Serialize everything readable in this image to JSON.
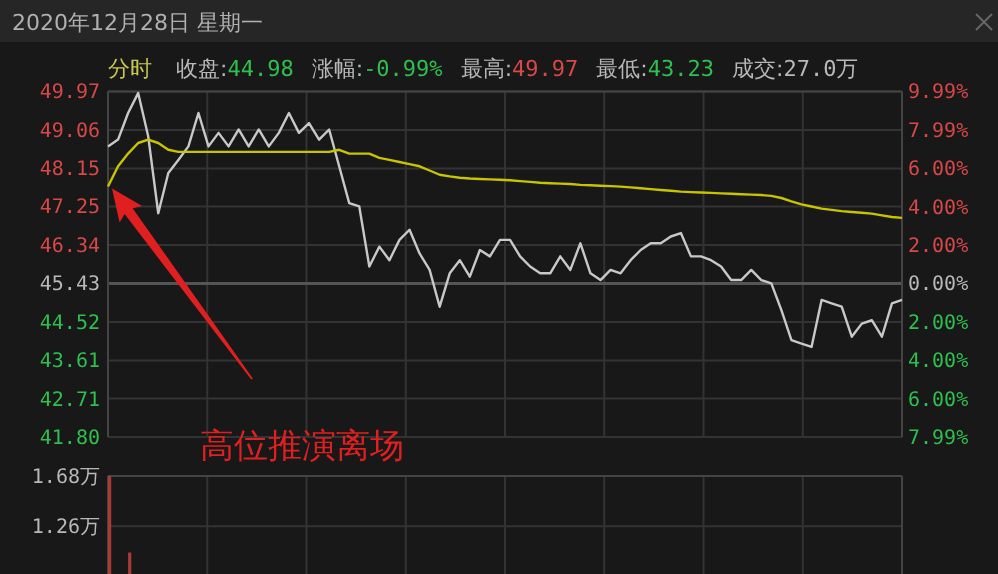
{
  "chart_data": [
    {
      "type": "line",
      "title": "2020年12月28日 星期一",
      "annotations": [
        "分时",
        "收盘:44.98",
        "涨幅:-0.99%",
        "最高:49.97",
        "最低:43.23",
        "成交:27.0万",
        "高位推演离场"
      ],
      "categories": [
        null,
        null,
        null,
        null,
        null,
        null,
        null,
        null,
        null,
        null,
        null,
        null,
        null,
        null,
        null,
        null,
        null,
        null,
        null,
        null,
        null,
        null,
        null,
        null,
        null,
        null,
        null,
        null,
        null,
        null,
        null,
        null,
        null,
        null,
        null,
        null,
        null,
        null,
        null,
        null,
        null,
        null,
        null,
        null,
        null,
        null,
        null,
        null,
        null,
        null,
        null,
        null,
        null,
        null,
        null,
        null,
        null,
        null,
        null,
        null,
        null,
        null,
        null,
        null,
        null,
        null,
        null,
        null,
        null,
        null,
        null,
        null,
        null,
        null,
        null,
        null,
        null,
        null,
        null,
        null
      ],
      "series": [
        {
          "color": "#c8c8c8",
          "values": [
            48.67,
            48.83,
            49.46,
            49.93,
            48.91,
            47.09,
            48.04,
            48.35,
            48.67,
            49.46,
            48.67,
            48.99,
            48.67,
            49.07,
            48.67,
            49.07,
            48.67,
            48.99,
            49.46,
            48.99,
            49.22,
            48.83,
            49.07,
            48.2,
            47.33,
            47.25,
            45.83,
            46.3,
            45.98,
            46.46,
            46.7,
            46.14,
            45.75,
            44.88,
            45.67,
            45.98,
            45.59,
            46.22,
            46.07,
            46.46,
            46.46,
            46.07,
            45.83,
            45.67,
            45.67,
            46.07,
            45.75,
            46.38,
            45.67,
            45.51,
            45.75,
            45.67,
            45.98,
            46.22,
            46.38,
            46.38,
            46.54,
            46.62,
            46.07,
            46.07,
            45.98,
            45.83,
            45.51,
            45.51,
            45.75,
            45.51,
            45.43,
            44.8,
            44.09,
            44.01,
            43.93,
            45.04,
            44.96,
            44.88,
            44.17,
            44.48,
            44.56,
            44.17,
            44.96,
            45.04
          ]
        },
        {
          "color": "#c8c400",
          "values": [
            47.72,
            48.2,
            48.5,
            48.75,
            48.83,
            48.75,
            48.59,
            48.54,
            48.54,
            48.54,
            48.54,
            48.54,
            48.54,
            48.54,
            48.54,
            48.54,
            48.54,
            48.54,
            48.54,
            48.54,
            48.54,
            48.54,
            48.54,
            48.59,
            48.5,
            48.5,
            48.5,
            48.4,
            48.35,
            48.3,
            48.25,
            48.2,
            48.1,
            48.0,
            47.96,
            47.93,
            47.91,
            47.9,
            47.89,
            47.88,
            47.87,
            47.85,
            47.83,
            47.81,
            47.8,
            47.79,
            47.78,
            47.76,
            47.75,
            47.74,
            47.73,
            47.72,
            47.7,
            47.68,
            47.66,
            47.64,
            47.62,
            47.6,
            47.59,
            47.58,
            47.57,
            47.56,
            47.55,
            47.54,
            47.53,
            47.52,
            47.5,
            47.45,
            47.37,
            47.3,
            47.25,
            47.2,
            47.17,
            47.14,
            47.12,
            47.1,
            47.08,
            47.04,
            47.0,
            46.98
          ]
        }
      ],
      "ylim": [
        41.8,
        49.97
      ],
      "yticks": [
        49.97,
        49.06,
        48.15,
        47.25,
        46.34,
        45.43,
        44.52,
        43.61,
        42.71,
        {
          "value": 41.8,
          "label": "41.80"
        }
      ],
      "y2lim": [
        -7.99,
        9.99
      ],
      "y2ticks": [
        {
          "value": 9.99,
          "label": "9.99%"
        },
        {
          "value": 7.99,
          "label": "7.99%"
        },
        {
          "value": 6,
          "label": "6.00%"
        },
        {
          "value": 4,
          "label": "4.00%"
        },
        {
          "value": 2,
          "label": "2.00%"
        },
        {
          "value": 0,
          "label": "0.00%"
        },
        {
          "value": -2,
          "label": "2.00%"
        },
        {
          "value": -4,
          "label": "4.00%"
        },
        {
          "value": -6,
          "label": "6.00%"
        },
        {
          "value": -7.99,
          "label": "7.99%"
        }
      ],
      "ref_lines": [
        {
          "axis": "y",
          "value": 45.43
        }
      ],
      "grid": true
    },
    {
      "type": "bar",
      "categories": [
        null,
        null,
        null,
        null,
        null,
        null,
        null,
        null,
        null,
        null,
        null,
        null,
        null,
        null,
        null,
        null,
        null,
        null,
        null,
        null,
        null,
        null,
        null,
        null,
        null,
        null,
        null,
        null,
        null,
        null,
        null,
        null,
        null,
        null,
        null,
        null,
        null,
        null,
        null,
        null,
        null,
        null,
        null,
        null,
        null,
        null,
        null,
        null,
        null,
        null,
        null,
        null,
        null,
        null,
        null,
        null,
        null,
        null,
        null,
        null,
        null,
        null,
        null,
        null,
        null,
        null,
        null,
        null,
        null,
        null,
        null,
        null,
        null,
        null,
        null,
        null,
        null,
        null,
        null,
        null
      ],
      "values": [
        1.68,
        null,
        1.04,
        null,
        null,
        null,
        null,
        null,
        null,
        null,
        null,
        null,
        null,
        null,
        null,
        null,
        null,
        null,
        null,
        null,
        null,
        null,
        null,
        null,
        null,
        null,
        null,
        null,
        null,
        null,
        null,
        null,
        null,
        null,
        null,
        null,
        null,
        null,
        null,
        null,
        null,
        null,
        null,
        null,
        null,
        null,
        null,
        null,
        null,
        null,
        null,
        null,
        null,
        null,
        null,
        null,
        null,
        null,
        null,
        null,
        null,
        null,
        null,
        null,
        null,
        null,
        null,
        null,
        null,
        null,
        null,
        null,
        null,
        null,
        null,
        null,
        null,
        null,
        null,
        null
      ],
      "color": "#a83a3a",
      "ylim": [
        0.86,
        1.68
      ],
      "yticks": [
        {
          "value": 1.68,
          "label": "1.68万"
        },
        {
          "value": 1.26,
          "label": "1.26万"
        }
      ],
      "grid": true
    }
  ]
}
